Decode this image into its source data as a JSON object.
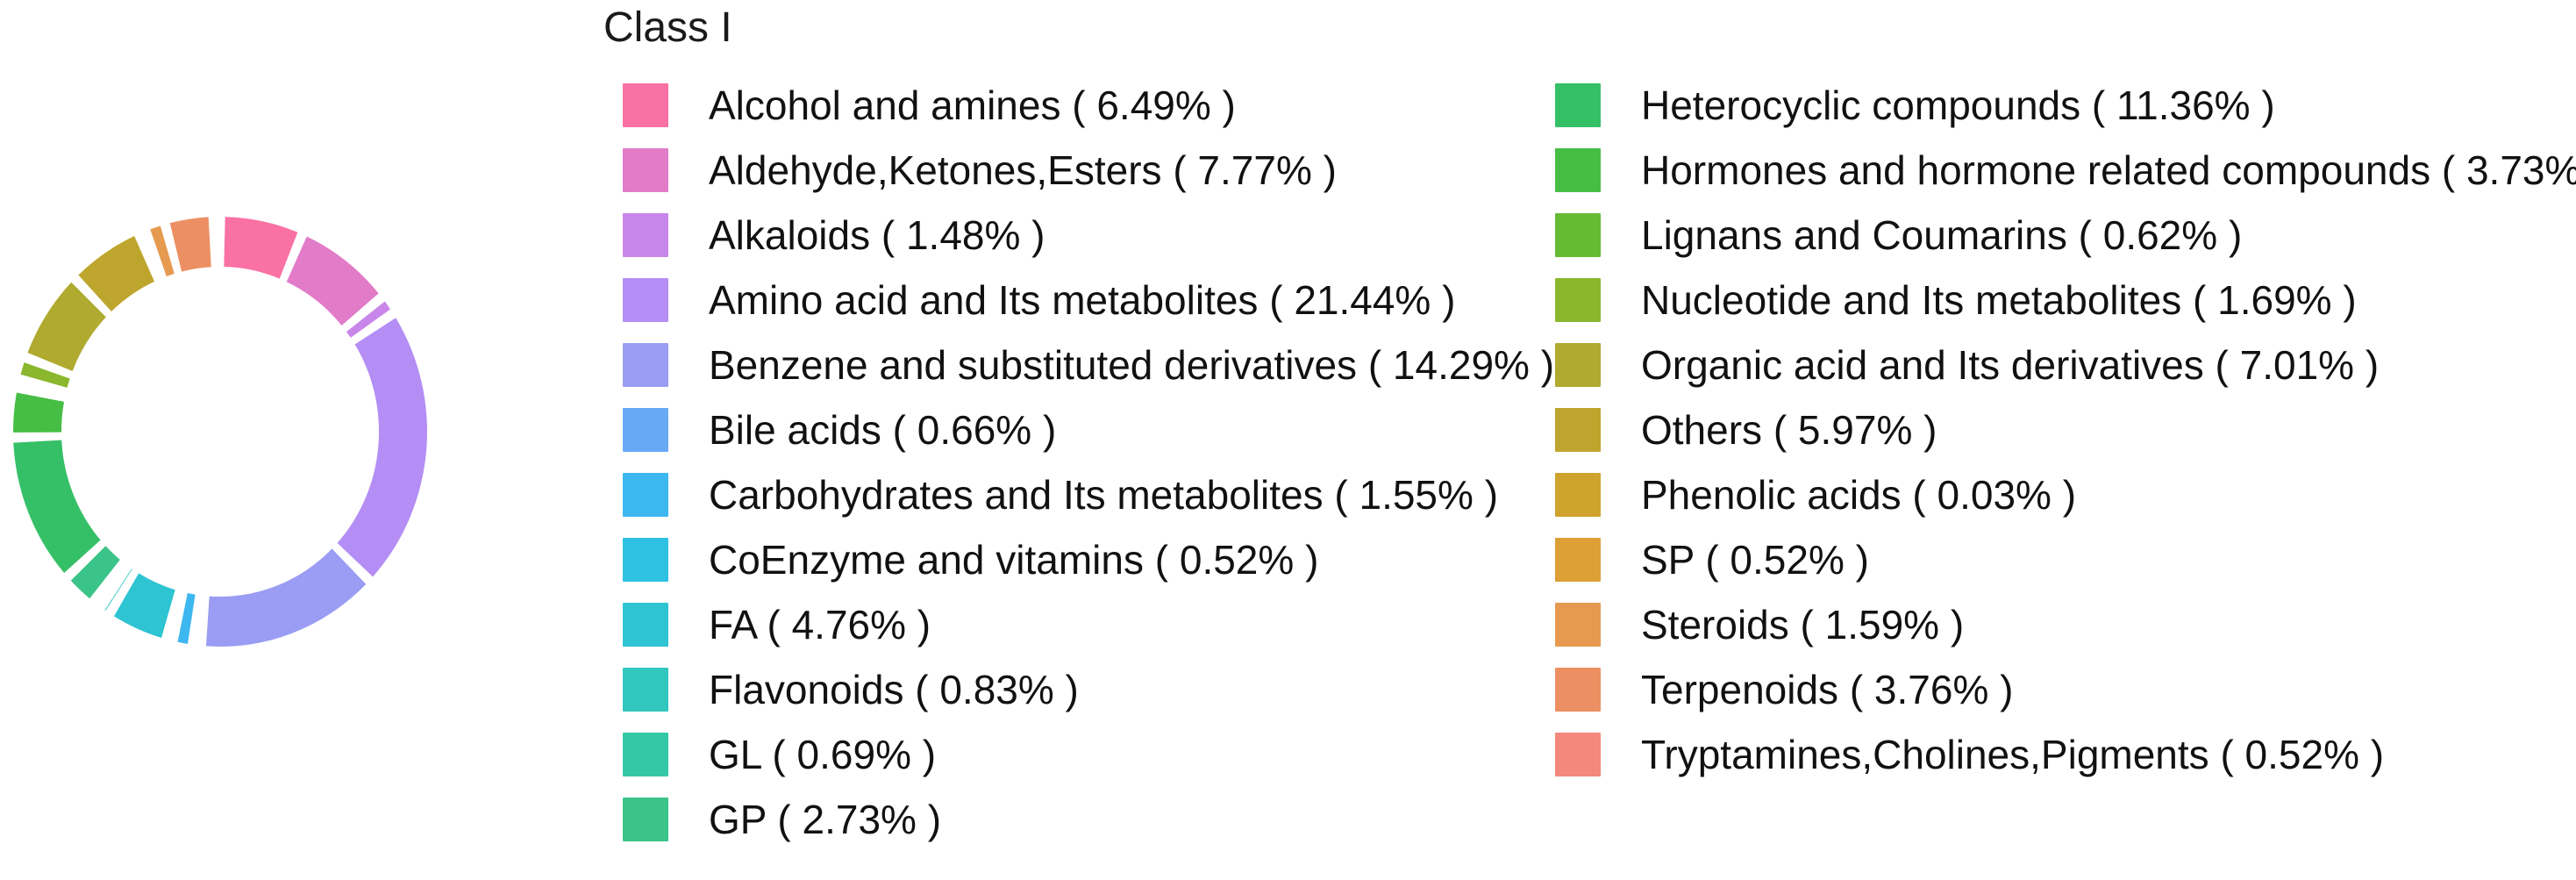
{
  "chart_data": {
    "type": "pie",
    "variant": "donut",
    "title": "Class I",
    "legend_position": "right",
    "legend_columns": 2,
    "left_column_count": 12,
    "label_format": "{name} ( {value}% )",
    "start_angle_deg": 0,
    "direction": "clockwise",
    "items": [
      {
        "name": "Alcohol and amines",
        "value": 6.49,
        "color": "#FA71A3"
      },
      {
        "name": "Aldehyde,Ketones,Esters",
        "value": 7.77,
        "color": "#E27BC8"
      },
      {
        "name": "Alkaloids",
        "value": 1.48,
        "color": "#C986EA"
      },
      {
        "name": "Amino acid and Its metabolites",
        "value": 21.44,
        "color": "#B48EF4"
      },
      {
        "name": "Benzene and substituted derivatives",
        "value": 14.29,
        "color": "#9A9DF3"
      },
      {
        "name": "Bile acids",
        "value": 0.66,
        "color": "#68A9F6"
      },
      {
        "name": "Carbohydrates and Its metabolites",
        "value": 1.55,
        "color": "#3DB7EF"
      },
      {
        "name": "CoEnzyme and vitamins",
        "value": 0.52,
        "color": "#2FC1E2"
      },
      {
        "name": "FA",
        "value": 4.76,
        "color": "#2EC4D2"
      },
      {
        "name": "Flavonoids",
        "value": 0.83,
        "color": "#31C6BE"
      },
      {
        "name": "GL",
        "value": 0.69,
        "color": "#35C8A6"
      },
      {
        "name": "GP",
        "value": 2.73,
        "color": "#3AC489"
      },
      {
        "name": "Heterocyclic compounds",
        "value": 11.36,
        "color": "#35C068"
      },
      {
        "name": "Hormones and hormone related compounds",
        "value": 3.73,
        "color": "#46BE45"
      },
      {
        "name": "Lignans and Coumarins",
        "value": 0.62,
        "color": "#66BB35"
      },
      {
        "name": "Nucleotide and Its metabolites",
        "value": 1.69,
        "color": "#8AB72E"
      },
      {
        "name": "Organic acid and Its derivatives",
        "value": 7.01,
        "color": "#B0AA30"
      },
      {
        "name": "Others",
        "value": 5.97,
        "color": "#BEA52D"
      },
      {
        "name": "Phenolic acids",
        "value": 0.03,
        "color": "#CEA32E"
      },
      {
        "name": "SP",
        "value": 0.52,
        "color": "#DDA036"
      },
      {
        "name": "Steroids",
        "value": 1.59,
        "color": "#E69A50"
      },
      {
        "name": "Terpenoids",
        "value": 3.76,
        "color": "#EC8F62"
      },
      {
        "name": "Tryptamines,Cholines,Pigments",
        "value": 0.52,
        "color": "#F4887D"
      }
    ]
  }
}
